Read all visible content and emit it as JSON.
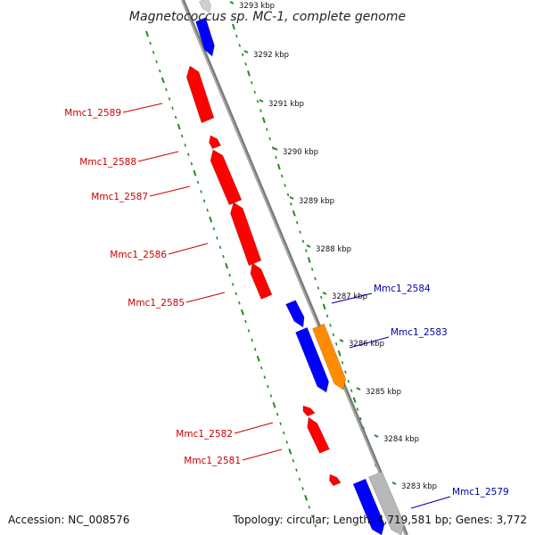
{
  "title": "Magnetococcus sp. MC-1, complete genome",
  "footer": {
    "accession": "Accession: NC_008576",
    "summary": "Topology: circular; Length: 4,719,581 bp; Genes: 3,772"
  },
  "colors": {
    "backbone": "#7a7a7a",
    "reverse_strand_gene": "#ff0000",
    "forward_strand_gene": "#0000ff",
    "highlight_gene": "#ff8c00",
    "other_gene": "#b8b8b8",
    "grid_dots": "#228b22",
    "reverse_label": "#cc0000",
    "forward_label": "#0000aa"
  },
  "scale": {
    "unit": "kbp",
    "ticks": [
      "3293 kbp",
      "3292 kbp",
      "3291 kbp",
      "3290 kbp",
      "3289 kbp",
      "3288 kbp",
      "3287 kbp",
      "3286 kbp",
      "3285 kbp",
      "3284 kbp",
      "3283 kbp"
    ]
  },
  "gene_labels": {
    "reverse_strand": [
      "Mmc1_2589",
      "Mmc1_2588",
      "Mmc1_2587",
      "Mmc1_2586",
      "Mmc1_2585",
      "Mmc1_2582",
      "Mmc1_2581"
    ],
    "forward_strand": [
      "Mmc1_2584",
      "Mmc1_2583",
      "Mmc1_2579"
    ]
  }
}
